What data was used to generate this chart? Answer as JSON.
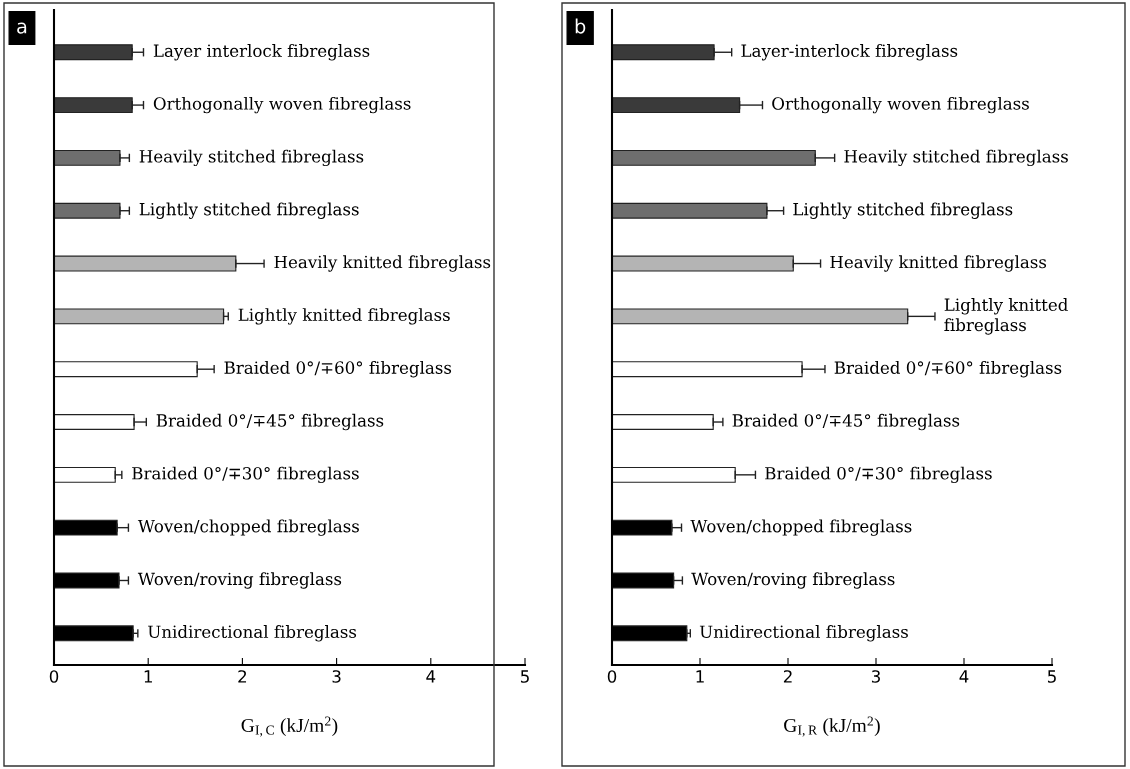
{
  "chart_data": [
    {
      "type": "bar",
      "orientation": "horizontal",
      "annotations": [
        "a"
      ],
      "xlabel": "G$_{I,C}$ (kJ/m$^{2}$)",
      "categories": [
        "Layer interlock fibreglass",
        "Orthogonally woven fibreglass",
        "Heavily stitched fibreglass",
        "Lightly stitched fibreglass",
        "Heavily knitted fibreglass",
        "Lightly knitted fibreglass",
        "Braided 0°/∓60° fibreglass",
        "Braided 0°/∓45° fibreglass",
        "Braided 0°/∓30° fibreglass",
        "Woven/chopped fibreglass",
        "Woven/roving fibreglass",
        "Unidirectional fibreglass"
      ],
      "values": [
        0.83,
        0.83,
        0.7,
        0.7,
        1.93,
        1.8,
        1.52,
        0.85,
        0.65,
        0.67,
        0.69,
        0.84
      ],
      "errors": [
        [
          0.83,
          0.95
        ],
        [
          0.83,
          0.95
        ],
        [
          0.7,
          0.8
        ],
        [
          0.7,
          0.8
        ],
        [
          1.93,
          2.23
        ],
        [
          1.8,
          1.85
        ],
        [
          1.52,
          1.7
        ],
        [
          0.85,
          0.98
        ],
        [
          0.65,
          0.72
        ],
        [
          0.67,
          0.79
        ],
        [
          0.69,
          0.79
        ],
        [
          0.84,
          0.89
        ]
      ],
      "colors": [
        "#3a3a3a",
        "#3a3a3a",
        "#6e6e6e",
        "#6e6e6e",
        "#b4b4b4",
        "#b4b4b4",
        "#ffffff",
        "#ffffff",
        "#ffffff",
        "#000000",
        "#000000",
        "#000000"
      ],
      "xlim": [
        0,
        5
      ],
      "xticks": [
        0,
        1,
        2,
        3,
        4,
        5
      ],
      "tick_labels": "x",
      "grid": false,
      "legend": false
    },
    {
      "type": "bar",
      "orientation": "horizontal",
      "annotations": [
        "b"
      ],
      "xlabel": "G$_{I,R}$ (kJ/m$^{2}$)",
      "categories": [
        "Layer-interlock fibreglass",
        "Orthogonally woven fibreglass",
        "Heavily stitched fibreglass",
        "Lightly stitched fibreglass",
        "Heavily knitted fibreglass",
        "Lightly knitted\nfibreglass",
        "Braided 0°/∓60° fibreglass",
        "Braided 0°/∓45° fibreglass",
        "Braided 0°/∓30° fibreglass",
        "Woven/chopped fibreglass",
        "Woven/roving fibreglass",
        "Unidirectional fibreglass"
      ],
      "values": [
        1.16,
        1.45,
        2.31,
        1.76,
        2.06,
        3.36,
        2.16,
        1.15,
        1.4,
        0.68,
        0.7,
        0.85
      ],
      "errors": [
        [
          1.16,
          1.36
        ],
        [
          1.45,
          1.71
        ],
        [
          2.31,
          2.53
        ],
        [
          1.76,
          1.95
        ],
        [
          2.06,
          2.37
        ],
        [
          3.36,
          3.67
        ],
        [
          2.16,
          2.42
        ],
        [
          1.15,
          1.26
        ],
        [
          1.4,
          1.63
        ],
        [
          0.68,
          0.79
        ],
        [
          0.7,
          0.8
        ],
        [
          0.85,
          0.89
        ]
      ],
      "colors": [
        "#3a3a3a",
        "#3a3a3a",
        "#6e6e6e",
        "#6e6e6e",
        "#b4b4b4",
        "#b4b4b4",
        "#ffffff",
        "#ffffff",
        "#ffffff",
        "#000000",
        "#000000",
        "#000000"
      ],
      "xlim": [
        0,
        5
      ],
      "xticks": [
        0,
        1,
        2,
        3,
        4,
        5
      ],
      "tick_labels": "x",
      "grid": false,
      "legend": false
    }
  ]
}
